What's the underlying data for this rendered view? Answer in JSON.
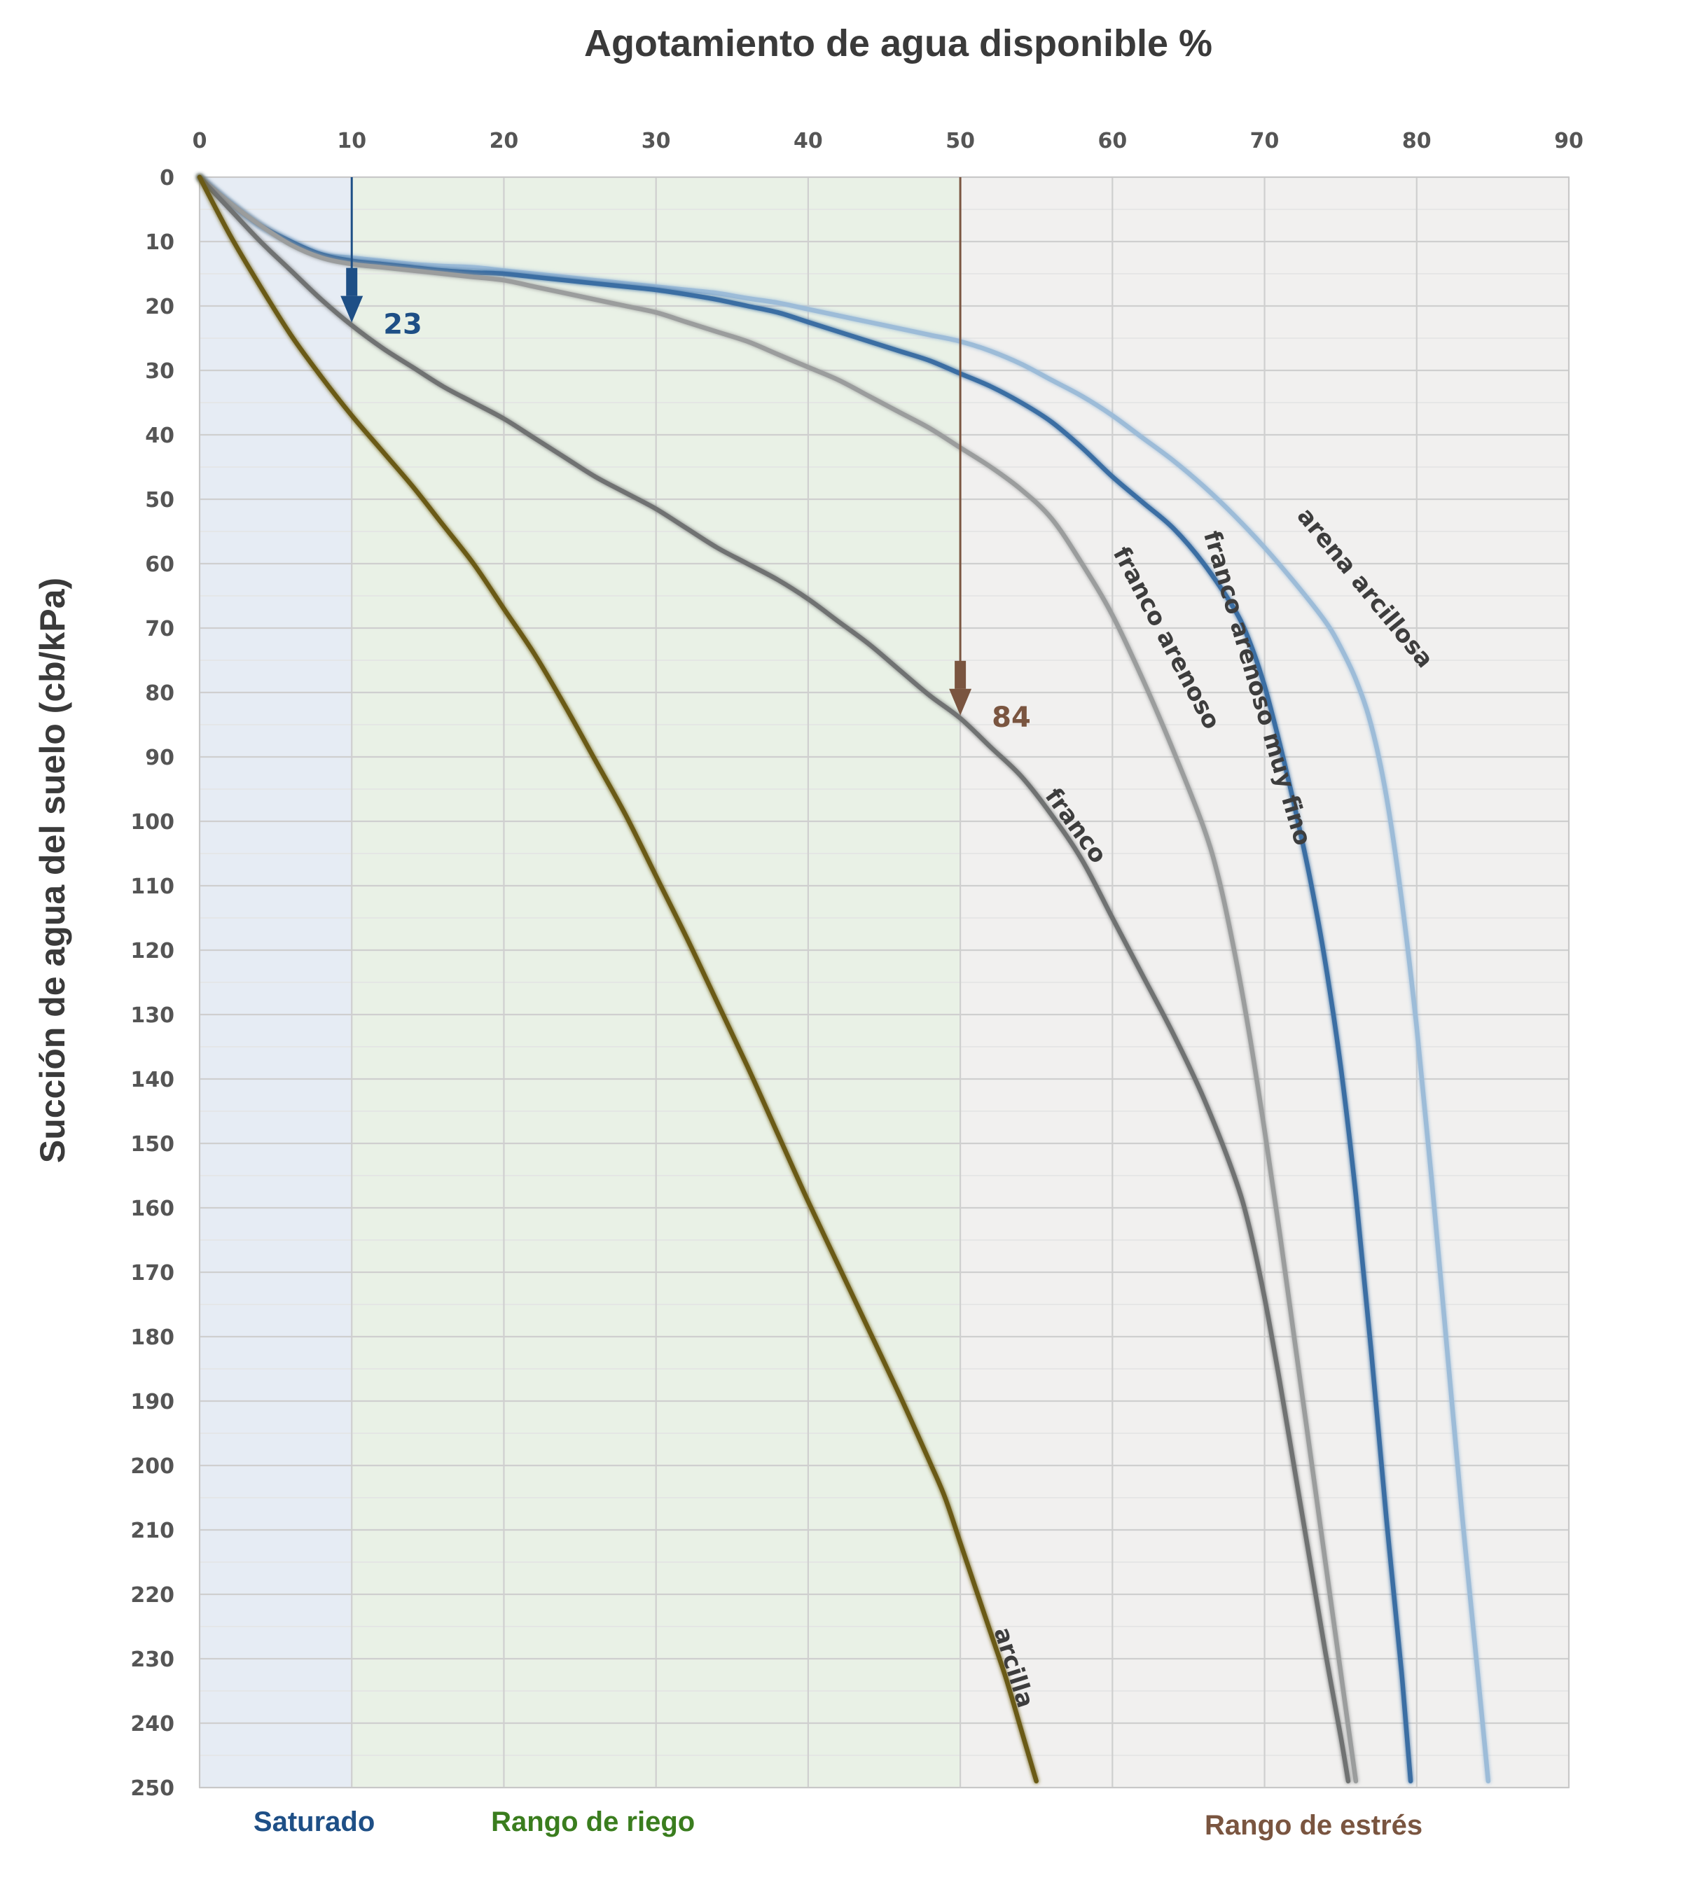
{
  "chart_data": {
    "type": "line",
    "title": "Agotamiento de agua disponible %",
    "xlabel": "Agotamiento de agua disponible %",
    "ylabel": "Succión de agua del suelo (cb/kPa)",
    "xlim": [
      0,
      90
    ],
    "ylim": [
      0,
      250
    ],
    "y_inverted": true,
    "x_axis_position": "top",
    "x_ticks": [
      0,
      10,
      20,
      30,
      40,
      50,
      60,
      70,
      80,
      90
    ],
    "y_ticks": [
      0,
      10,
      20,
      30,
      40,
      50,
      60,
      70,
      80,
      90,
      100,
      110,
      120,
      130,
      140,
      150,
      160,
      170,
      180,
      190,
      200,
      210,
      220,
      230,
      240,
      250
    ],
    "grid": true,
    "zones": [
      {
        "label": "Saturado",
        "x_start": 0,
        "x_end": 10,
        "fill": "#e6ecf4",
        "label_color": "#1e4f86"
      },
      {
        "label": "Rango de riego",
        "x_start": 10,
        "x_end": 50,
        "fill": "#e9f1e6",
        "label_color": "#3a7d1e"
      },
      {
        "label": "Rango de estrés",
        "x_start": 50,
        "x_end": 90,
        "fill": "#f1f0ef",
        "label_color": "#7a5540"
      }
    ],
    "series": [
      {
        "name": "arcilla",
        "color": "#6b5a12",
        "points": [
          [
            0,
            0
          ],
          [
            2,
            9
          ],
          [
            4,
            17
          ],
          [
            6,
            24.5
          ],
          [
            8,
            31
          ],
          [
            10,
            37
          ],
          [
            12,
            42.5
          ],
          [
            14,
            48
          ],
          [
            16,
            54
          ],
          [
            18,
            60
          ],
          [
            20,
            67
          ],
          [
            22,
            74
          ],
          [
            24,
            82
          ],
          [
            26,
            90.5
          ],
          [
            28,
            99
          ],
          [
            30,
            108.5
          ],
          [
            32,
            118
          ],
          [
            34,
            128
          ],
          [
            36,
            138
          ],
          [
            38,
            148.5
          ],
          [
            40,
            159
          ],
          [
            42,
            169
          ],
          [
            44,
            179
          ],
          [
            46,
            189
          ],
          [
            48,
            199.5
          ],
          [
            49,
            205
          ],
          [
            50,
            212
          ],
          [
            51,
            219
          ],
          [
            52,
            226
          ],
          [
            53,
            233
          ],
          [
            54,
            241
          ],
          [
            55,
            249
          ]
        ],
        "label_at": [
          54,
          231
        ]
      },
      {
        "name": "franco",
        "color": "#707272",
        "points": [
          [
            0,
            0
          ],
          [
            2,
            5
          ],
          [
            4,
            10
          ],
          [
            6,
            14.5
          ],
          [
            8,
            19
          ],
          [
            10,
            23
          ],
          [
            12,
            26.5
          ],
          [
            14,
            29.5
          ],
          [
            16,
            32.5
          ],
          [
            18,
            35
          ],
          [
            20,
            37.5
          ],
          [
            22,
            40.5
          ],
          [
            24,
            43.5
          ],
          [
            26,
            46.5
          ],
          [
            28,
            49
          ],
          [
            30,
            51.5
          ],
          [
            32,
            54.5
          ],
          [
            34,
            57.5
          ],
          [
            36,
            60
          ],
          [
            38,
            62.5
          ],
          [
            40,
            65.5
          ],
          [
            42,
            69
          ],
          [
            44,
            72.5
          ],
          [
            46,
            76.5
          ],
          [
            48,
            80.5
          ],
          [
            50,
            84
          ],
          [
            52,
            88.5
          ],
          [
            54,
            93
          ],
          [
            56,
            99
          ],
          [
            58,
            106
          ],
          [
            60,
            115
          ],
          [
            62,
            124
          ],
          [
            64,
            133
          ],
          [
            66,
            143
          ],
          [
            68,
            155
          ],
          [
            69,
            163
          ],
          [
            70,
            174
          ],
          [
            71,
            187
          ],
          [
            72,
            201
          ],
          [
            73,
            215
          ],
          [
            74,
            229
          ],
          [
            75,
            242
          ],
          [
            75.5,
            249
          ]
        ],
        "label_at": [
          58,
          100
        ]
      },
      {
        "name": "franco arenoso",
        "color": "#9b9d9d",
        "points": [
          [
            0,
            0
          ],
          [
            2,
            4
          ],
          [
            4,
            7.5
          ],
          [
            6,
            10.5
          ],
          [
            8,
            12.5
          ],
          [
            10,
            13.5
          ],
          [
            12,
            14
          ],
          [
            14,
            14.5
          ],
          [
            16,
            15
          ],
          [
            18,
            15.5
          ],
          [
            20,
            16
          ],
          [
            22,
            17
          ],
          [
            24,
            18
          ],
          [
            26,
            19
          ],
          [
            28,
            20
          ],
          [
            30,
            21
          ],
          [
            32,
            22.5
          ],
          [
            34,
            24
          ],
          [
            36,
            25.5
          ],
          [
            38,
            27.5
          ],
          [
            40,
            29.5
          ],
          [
            42,
            31.5
          ],
          [
            44,
            34
          ],
          [
            46,
            36.5
          ],
          [
            48,
            39
          ],
          [
            50,
            42
          ],
          [
            52,
            45
          ],
          [
            54,
            48.5
          ],
          [
            56,
            53
          ],
          [
            58,
            60
          ],
          [
            60,
            68
          ],
          [
            62,
            78
          ],
          [
            64,
            89
          ],
          [
            66,
            101
          ],
          [
            67,
            109
          ],
          [
            68,
            120
          ],
          [
            69,
            133
          ],
          [
            70,
            148
          ],
          [
            71,
            164
          ],
          [
            72,
            181
          ],
          [
            73,
            198
          ],
          [
            74,
            215
          ],
          [
            75,
            232
          ],
          [
            76,
            249
          ]
        ],
        "label_at": [
          64,
          71
        ]
      },
      {
        "name": "franco arenoso muy fino",
        "color": "#3a6ea3",
        "points": [
          [
            0,
            0
          ],
          [
            2,
            4
          ],
          [
            4,
            7.5
          ],
          [
            6,
            10
          ],
          [
            8,
            12
          ],
          [
            10,
            13
          ],
          [
            12,
            13.5
          ],
          [
            14,
            14
          ],
          [
            16,
            14.5
          ],
          [
            18,
            14.8
          ],
          [
            20,
            15
          ],
          [
            22,
            15.5
          ],
          [
            24,
            16
          ],
          [
            26,
            16.5
          ],
          [
            28,
            17
          ],
          [
            30,
            17.5
          ],
          [
            32,
            18.2
          ],
          [
            34,
            19
          ],
          [
            36,
            20
          ],
          [
            38,
            21
          ],
          [
            40,
            22.5
          ],
          [
            42,
            24
          ],
          [
            44,
            25.5
          ],
          [
            46,
            27
          ],
          [
            48,
            28.5
          ],
          [
            50,
            30.5
          ],
          [
            52,
            32.5
          ],
          [
            54,
            35
          ],
          [
            56,
            38
          ],
          [
            58,
            42
          ],
          [
            60,
            46.5
          ],
          [
            62,
            50.5
          ],
          [
            64,
            54.5
          ],
          [
            66,
            60
          ],
          [
            68,
            67
          ],
          [
            69,
            72
          ],
          [
            70,
            79
          ],
          [
            71,
            88
          ],
          [
            72,
            98
          ],
          [
            73,
            109
          ],
          [
            74,
            122
          ],
          [
            75,
            138
          ],
          [
            76,
            158
          ],
          [
            77,
            182
          ],
          [
            78,
            208
          ],
          [
            79,
            232
          ],
          [
            79.6,
            249
          ]
        ],
        "label_at": [
          70,
          79
        ]
      },
      {
        "name": "arena arcillosa",
        "color": "#9dbcd8",
        "points": [
          [
            0,
            0
          ],
          [
            2,
            4
          ],
          [
            4,
            7.5
          ],
          [
            6,
            10
          ],
          [
            8,
            12
          ],
          [
            10,
            12.5
          ],
          [
            12,
            13
          ],
          [
            14,
            13.5
          ],
          [
            16,
            13.8
          ],
          [
            18,
            14
          ],
          [
            20,
            14.5
          ],
          [
            22,
            15
          ],
          [
            24,
            15.5
          ],
          [
            26,
            16
          ],
          [
            28,
            16.5
          ],
          [
            30,
            17
          ],
          [
            32,
            17.5
          ],
          [
            34,
            18
          ],
          [
            36,
            18.8
          ],
          [
            38,
            19.5
          ],
          [
            40,
            20.5
          ],
          [
            42,
            21.5
          ],
          [
            44,
            22.5
          ],
          [
            46,
            23.5
          ],
          [
            48,
            24.5
          ],
          [
            50,
            25.5
          ],
          [
            52,
            27
          ],
          [
            54,
            29
          ],
          [
            56,
            31.5
          ],
          [
            58,
            34
          ],
          [
            60,
            37
          ],
          [
            62,
            40.5
          ],
          [
            64,
            44
          ],
          [
            66,
            48
          ],
          [
            68,
            52.5
          ],
          [
            70,
            57.5
          ],
          [
            72,
            63
          ],
          [
            74,
            69
          ],
          [
            75,
            73
          ],
          [
            76,
            78
          ],
          [
            77,
            85
          ],
          [
            78,
            96
          ],
          [
            79,
            112
          ],
          [
            80,
            132
          ],
          [
            81,
            156
          ],
          [
            82,
            182
          ],
          [
            83,
            208
          ],
          [
            84,
            232
          ],
          [
            84.7,
            249
          ]
        ],
        "label_at": [
          77,
          63
        ]
      }
    ],
    "annotations": [
      {
        "label": "23",
        "x": 10,
        "y": 23,
        "color": "#1e4f86"
      },
      {
        "label": "84",
        "x": 50,
        "y": 84,
        "color": "#7a5540"
      }
    ]
  }
}
